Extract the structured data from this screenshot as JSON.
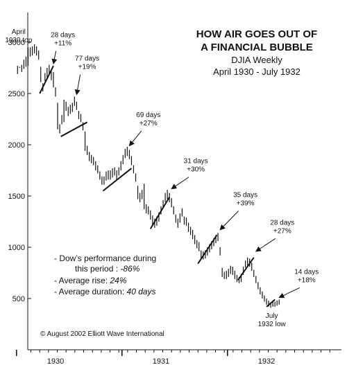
{
  "chart_data": {
    "type": "bar",
    "subtype": "weekly-high-low-bars",
    "title": [
      "HOW AIR GOES OUT OF",
      "A FINANCIAL BUBBLE"
    ],
    "subtitle": [
      "DJIA  Weekly",
      "April 1930 - July 1932"
    ],
    "xlabel": "",
    "ylabel": "",
    "ylim": [
      300,
      3200
    ],
    "yticks": [
      500,
      1000,
      1500,
      2000,
      2500,
      3000
    ],
    "xticks": [
      {
        "label": "1930",
        "year": 1930.0
      },
      {
        "label": "1931",
        "year": 1931.0
      },
      {
        "label": "1932",
        "year": 1932.0
      }
    ],
    "x_range_years": [
      1929.6,
      1932.5
    ],
    "grid": false,
    "bars": [
      [
        1929.64,
        2770,
        2690
      ],
      [
        1929.66,
        2760,
        2750
      ],
      [
        1929.68,
        2780,
        2710
      ],
      [
        1929.7,
        2830,
        2740
      ],
      [
        1929.72,
        2860,
        2760
      ],
      [
        1929.74,
        2950,
        2770
      ],
      [
        1929.76,
        2950,
        2860
      ],
      [
        1929.78,
        2960,
        2870
      ],
      [
        1929.8,
        2980,
        2890
      ],
      [
        1929.82,
        2960,
        2870
      ],
      [
        1929.84,
        2920,
        2830
      ],
      [
        1929.86,
        2760,
        2610
      ],
      [
        1929.88,
        2600,
        2520
      ],
      [
        1929.9,
        2700,
        2620
      ],
      [
        1929.92,
        2750,
        2660
      ],
      [
        1929.94,
        2780,
        2690
      ],
      [
        1929.96,
        2720,
        2630
      ],
      [
        1929.98,
        2710,
        2560
      ],
      [
        1930.0,
        2560,
        2470
      ],
      [
        1930.02,
        2410,
        2150
      ],
      [
        1930.04,
        2200,
        2110
      ],
      [
        1930.06,
        2290,
        2200
      ],
      [
        1930.08,
        2440,
        2220
      ],
      [
        1930.1,
        2420,
        2330
      ],
      [
        1930.12,
        2370,
        2280
      ],
      [
        1930.14,
        2390,
        2300
      ],
      [
        1930.16,
        2410,
        2320
      ],
      [
        1930.18,
        2470,
        2380
      ],
      [
        1930.2,
        2420,
        2340
      ],
      [
        1930.22,
        2330,
        2250
      ],
      [
        1930.24,
        2300,
        2220
      ],
      [
        1930.26,
        2220,
        2140
      ],
      [
        1930.28,
        2130,
        1940
      ],
      [
        1930.3,
        1990,
        1900
      ],
      [
        1930.32,
        1930,
        1840
      ],
      [
        1930.34,
        1900,
        1820
      ],
      [
        1930.36,
        1880,
        1800
      ],
      [
        1930.38,
        1840,
        1750
      ],
      [
        1930.4,
        1800,
        1720
      ],
      [
        1930.42,
        1740,
        1660
      ],
      [
        1930.44,
        1690,
        1610
      ],
      [
        1930.46,
        1690,
        1610
      ],
      [
        1930.48,
        1740,
        1650
      ],
      [
        1930.5,
        1750,
        1660
      ],
      [
        1930.52,
        1750,
        1660
      ],
      [
        1930.54,
        1770,
        1680
      ],
      [
        1930.56,
        1780,
        1700
      ],
      [
        1930.58,
        1750,
        1660
      ],
      [
        1930.6,
        1780,
        1700
      ],
      [
        1930.62,
        1840,
        1750
      ],
      [
        1930.64,
        1900,
        1810
      ],
      [
        1930.66,
        1960,
        1870
      ],
      [
        1930.68,
        1980,
        1890
      ],
      [
        1930.7,
        1950,
        1860
      ],
      [
        1930.72,
        1890,
        1800
      ],
      [
        1930.74,
        1800,
        1720
      ],
      [
        1930.76,
        1720,
        1640
      ],
      [
        1930.78,
        1600,
        1470
      ],
      [
        1930.8,
        1530,
        1440
      ],
      [
        1930.82,
        1560,
        1470
      ],
      [
        1930.84,
        1620,
        1370
      ],
      [
        1930.86,
        1420,
        1330
      ],
      [
        1930.88,
        1400,
        1320
      ],
      [
        1930.9,
        1360,
        1270
      ],
      [
        1930.92,
        1310,
        1220
      ],
      [
        1930.94,
        1280,
        1190
      ],
      [
        1930.96,
        1300,
        1210
      ],
      [
        1930.98,
        1340,
        1250
      ],
      [
        1931.0,
        1400,
        1320
      ],
      [
        1931.02,
        1460,
        1380
      ],
      [
        1931.04,
        1530,
        1440
      ],
      [
        1931.06,
        1560,
        1470
      ],
      [
        1931.08,
        1530,
        1440
      ],
      [
        1931.1,
        1480,
        1390
      ],
      [
        1931.12,
        1400,
        1320
      ],
      [
        1931.14,
        1320,
        1240
      ],
      [
        1931.16,
        1280,
        1190
      ],
      [
        1931.18,
        1330,
        1240
      ],
      [
        1931.2,
        1380,
        1300
      ],
      [
        1931.22,
        1300,
        1220
      ],
      [
        1931.24,
        1290,
        1210
      ],
      [
        1931.26,
        1240,
        1150
      ],
      [
        1931.28,
        1200,
        1120
      ],
      [
        1931.3,
        1170,
        1080
      ],
      [
        1931.32,
        1120,
        1030
      ],
      [
        1931.34,
        1070,
        990
      ],
      [
        1931.36,
        1050,
        960
      ],
      [
        1931.38,
        970,
        890
      ],
      [
        1931.4,
        960,
        880
      ],
      [
        1931.42,
        970,
        890
      ],
      [
        1931.44,
        1000,
        920
      ],
      [
        1931.46,
        1030,
        950
      ],
      [
        1931.48,
        1060,
        980
      ],
      [
        1931.5,
        1090,
        1010
      ],
      [
        1931.52,
        1120,
        1040
      ],
      [
        1931.54,
        1140,
        1060
      ],
      [
        1931.56,
        1000,
        920
      ],
      [
        1931.58,
        800,
        710
      ],
      [
        1931.6,
        760,
        690
      ],
      [
        1931.62,
        770,
        690
      ],
      [
        1931.64,
        790,
        710
      ],
      [
        1931.66,
        820,
        740
      ],
      [
        1931.68,
        810,
        730
      ],
      [
        1931.7,
        770,
        690
      ],
      [
        1931.72,
        730,
        660
      ],
      [
        1931.74,
        710,
        650
      ],
      [
        1931.76,
        740,
        660
      ],
      [
        1931.78,
        810,
        730
      ],
      [
        1931.8,
        870,
        800
      ],
      [
        1931.82,
        900,
        820
      ],
      [
        1931.84,
        890,
        810
      ],
      [
        1931.86,
        850,
        770
      ],
      [
        1931.88,
        780,
        710
      ],
      [
        1931.9,
        720,
        650
      ],
      [
        1931.92,
        660,
        590
      ],
      [
        1931.94,
        610,
        540
      ],
      [
        1931.96,
        570,
        500
      ],
      [
        1931.98,
        530,
        470
      ],
      [
        1932.0,
        500,
        440
      ],
      [
        1932.02,
        480,
        420
      ],
      [
        1932.04,
        460,
        410
      ],
      [
        1932.06,
        470,
        420
      ],
      [
        1932.08,
        470,
        420
      ],
      [
        1932.1,
        480,
        430
      ],
      [
        1932.12,
        490,
        440
      ]
    ],
    "rally_lines": [
      [
        [
          1929.85,
          2500
        ],
        [
          1929.98,
          2770
        ]
      ],
      [
        [
          1930.05,
          2080
        ],
        [
          1930.3,
          2220
        ]
      ],
      [
        [
          1930.45,
          1550
        ],
        [
          1930.72,
          1770
        ]
      ],
      [
        [
          1930.9,
          1180
        ],
        [
          1931.08,
          1490
        ]
      ],
      [
        [
          1931.35,
          840
        ],
        [
          1931.53,
          1120
        ]
      ],
      [
        [
          1931.73,
          680
        ],
        [
          1931.88,
          900
        ]
      ],
      [
        [
          1932.0,
          420
        ],
        [
          1932.08,
          490
        ]
      ]
    ],
    "annotations": [
      {
        "name": "april-1930-top",
        "lines": [
          "April",
          "1930 top"
        ],
        "x": 1929.65,
        "y": 3080
      },
      {
        "name": "rally-28days-1",
        "lines": [
          "28 days",
          "+11%"
        ],
        "x": 1930.07,
        "y": 3050,
        "arrow_to": [
          1929.98,
          2790
        ]
      },
      {
        "name": "rally-77days",
        "lines": [
          "77 days",
          "+19%"
        ],
        "x": 1930.3,
        "y": 2820,
        "arrow_to": [
          1930.2,
          2490
        ]
      },
      {
        "name": "rally-69days",
        "lines": [
          "69 days",
          "+27%"
        ],
        "x": 1930.88,
        "y": 2270,
        "arrow_to": [
          1930.7,
          1990
        ]
      },
      {
        "name": "rally-31days",
        "lines": [
          "31 days",
          "+30%"
        ],
        "x": 1931.33,
        "y": 1820,
        "arrow_to": [
          1931.1,
          1570
        ]
      },
      {
        "name": "rally-35days",
        "lines": [
          "35 days",
          "+39%"
        ],
        "x": 1931.8,
        "y": 1490,
        "arrow_to": [
          1931.56,
          1170
        ]
      },
      {
        "name": "rally-28days-2",
        "lines": [
          "28 days",
          "+27%"
        ],
        "x": 1932.15,
        "y": 1220,
        "arrow_to": [
          1931.9,
          960
        ]
      },
      {
        "name": "rally-14days",
        "lines": [
          "14 days",
          "+18%"
        ],
        "x": 1932.38,
        "y": 740,
        "arrow_to": [
          1932.12,
          510
        ]
      },
      {
        "name": "july-1932-low",
        "lines": [
          "July",
          "1932 low"
        ],
        "x": 1932.05,
        "y": 310
      }
    ],
    "notes": [
      {
        "label": "- Dow’s performance during",
        "value": ""
      },
      {
        "label": "  this period : ",
        "value": "-86%"
      },
      {
        "label": "- Average rise: ",
        "value": "24%"
      },
      {
        "label": "- Average duration: ",
        "value": "40 days"
      }
    ],
    "copyright": "© August 2002 Elliott Wave International"
  }
}
